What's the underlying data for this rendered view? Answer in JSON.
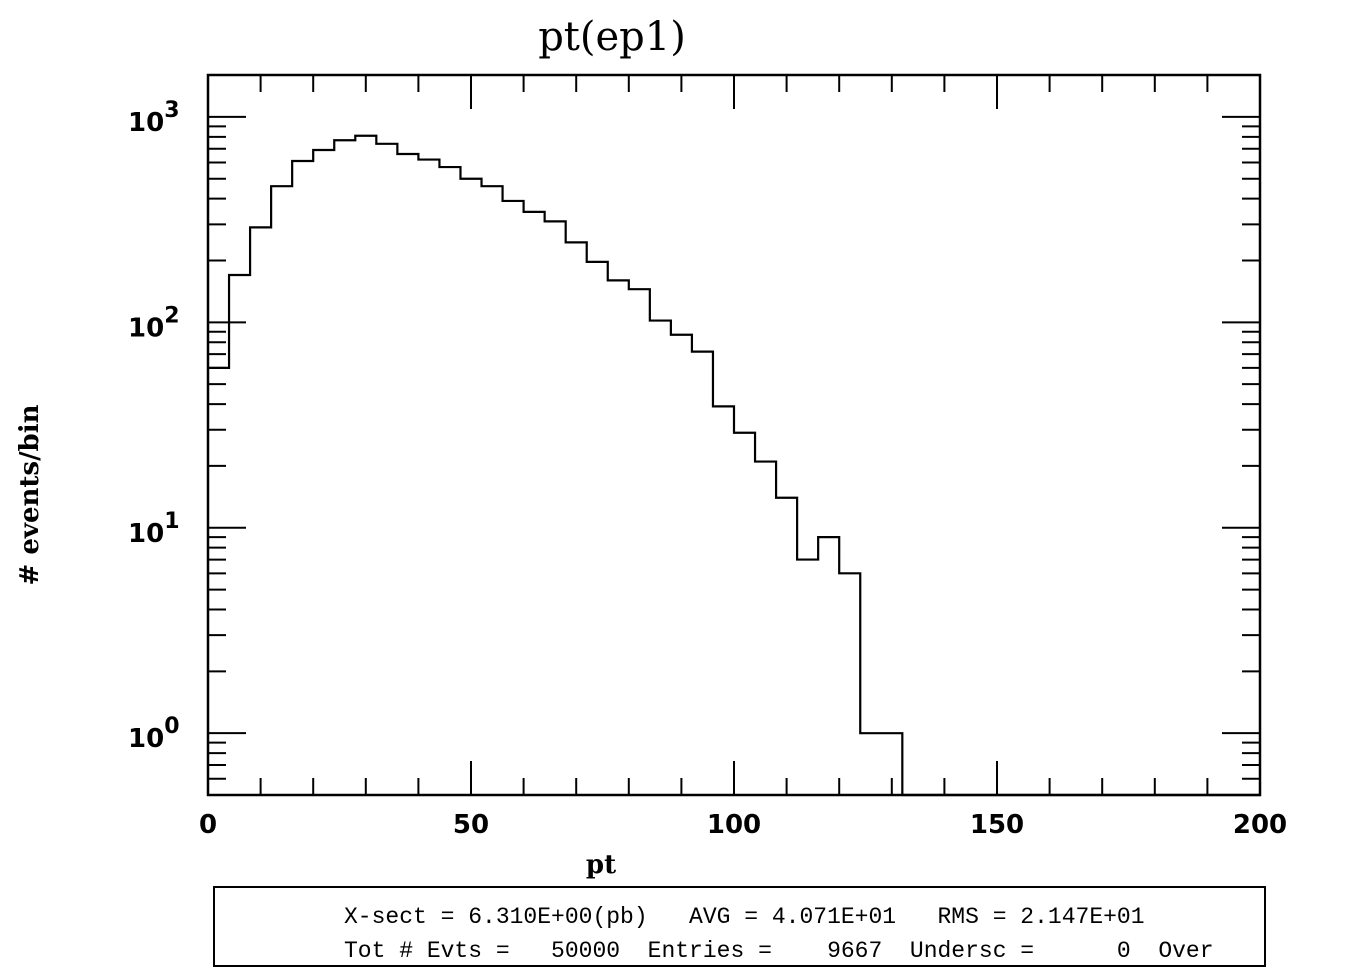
{
  "chart_data": {
    "type": "histogram",
    "title": "pt(ep1)",
    "xlabel": "pt",
    "ylabel": "# events/bin",
    "xlim": [
      0,
      200
    ],
    "ylim": [
      0.5,
      1600
    ],
    "yscale": "log",
    "grid": false,
    "legend": "none",
    "x_ticks": [
      "0",
      "50",
      "100",
      "150",
      "200"
    ],
    "y_ticks": [
      {
        "base": "10",
        "exp": "0"
      },
      {
        "base": "10",
        "exp": "1"
      },
      {
        "base": "10",
        "exp": "2"
      },
      {
        "base": "10",
        "exp": "3"
      }
    ],
    "bin_width": 4,
    "bin_edges_start": 0,
    "values": [
      60,
      170,
      290,
      460,
      610,
      690,
      770,
      810,
      740,
      660,
      620,
      570,
      500,
      460,
      390,
      345,
      310,
      245,
      197,
      160,
      145,
      102,
      87,
      72,
      39,
      29,
      21,
      14,
      7,
      9,
      6,
      1,
      1,
      0,
      0,
      0,
      0,
      0,
      0,
      0,
      0,
      0,
      0,
      0,
      0,
      0,
      0,
      0,
      0,
      0
    ]
  },
  "stats": {
    "line1": "X-sect = 6.310E+00(pb)   AVG = 4.071E+01   RMS = 2.147E+01",
    "line2": "Tot # Evts =   50000  Entries =    9667  Undersc =      0  Over"
  }
}
